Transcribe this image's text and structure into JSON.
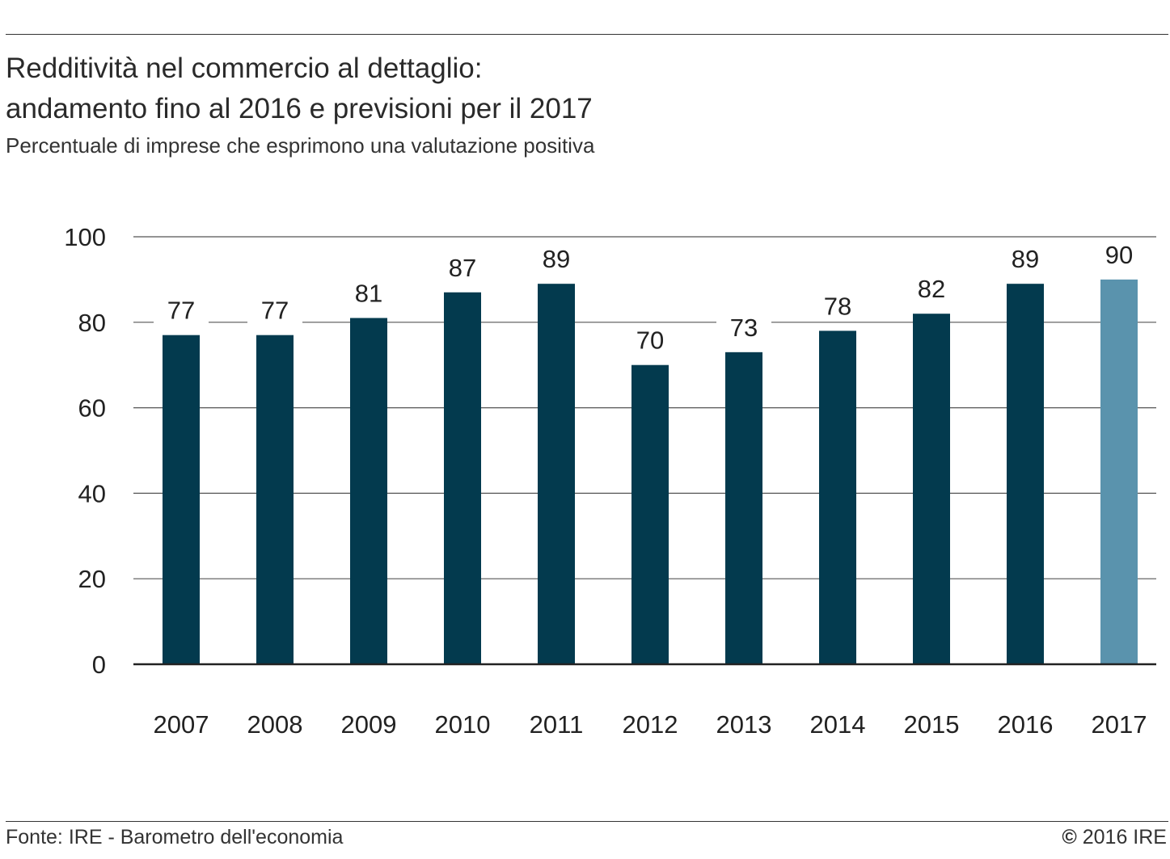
{
  "header": {
    "title_line1": "Redditività nel commercio al dettaglio:",
    "title_line2": "andamento fino al 2016 e previsioni per il 2017",
    "subtitle": "Percentuale di imprese che esprimono una valutazione positiva"
  },
  "footer": {
    "source": "Fonte: IRE - Barometro dell'economia",
    "copyright_symbol": "©",
    "copyright_text": "2016 IRE"
  },
  "colors": {
    "actual": "#033a4e",
    "forecast": "#5a93ad",
    "grid": "#555555",
    "axis": "#222222"
  },
  "chart_data": {
    "type": "bar",
    "categories": [
      "2007",
      "2008",
      "2009",
      "2010",
      "2011",
      "2012",
      "2013",
      "2014",
      "2015",
      "2016",
      "2017"
    ],
    "values": [
      77,
      77,
      81,
      87,
      89,
      70,
      73,
      78,
      82,
      89,
      90
    ],
    "data_labels": [
      "77",
      "77",
      "81",
      "87",
      "89",
      "70",
      "73",
      "78",
      "82",
      "89",
      "90"
    ],
    "forecast_categories": [
      "2017"
    ],
    "yticks": [
      "0",
      "20",
      "40",
      "60",
      "80",
      "100"
    ],
    "ylim": [
      0,
      100
    ],
    "grid": true,
    "xlabel": "",
    "ylabel": ""
  }
}
